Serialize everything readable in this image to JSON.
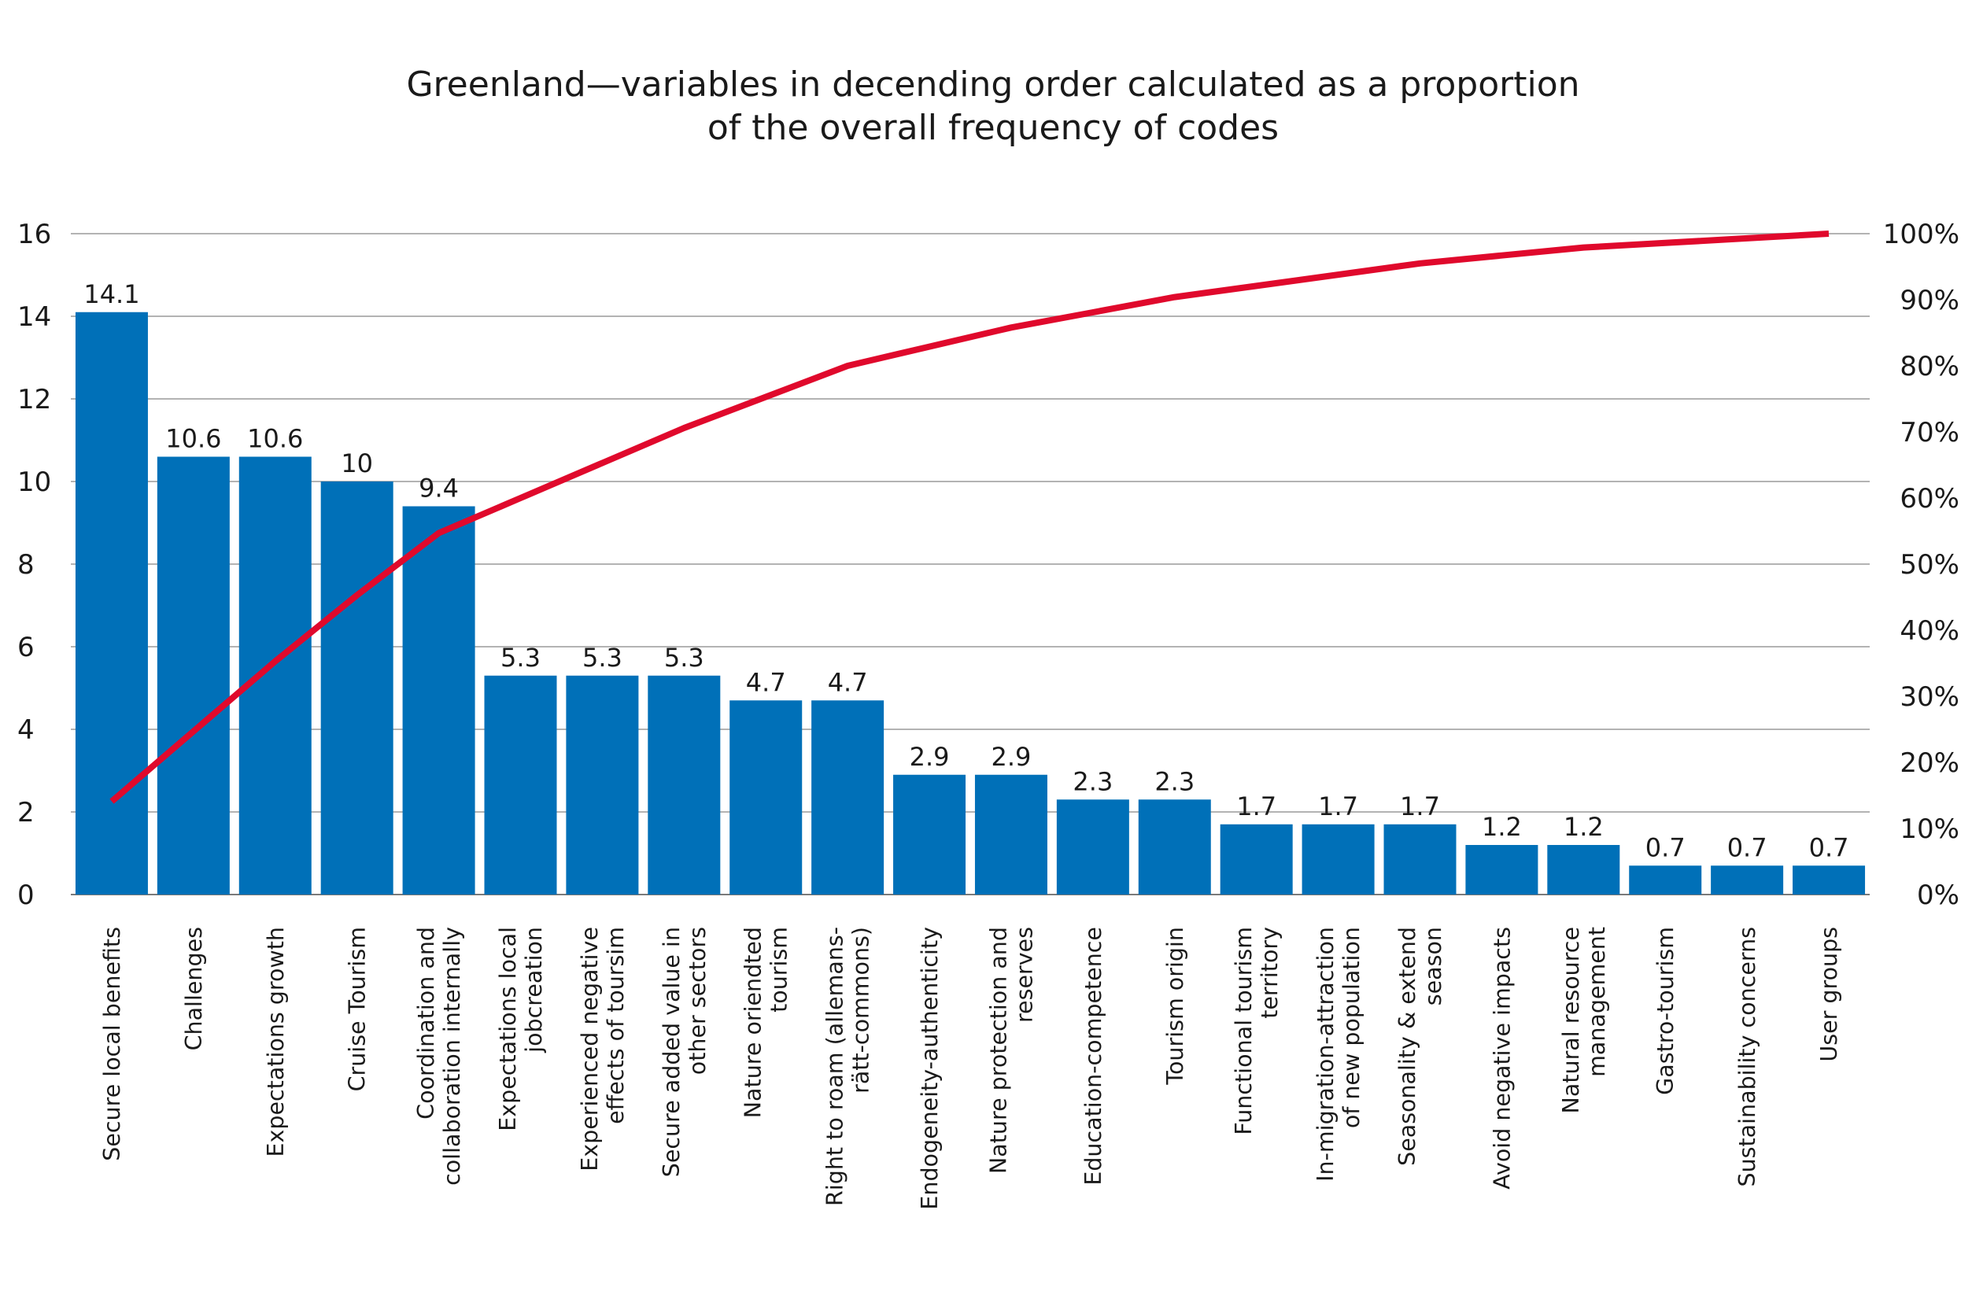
{
  "chart_data": {
    "type": "bar",
    "title": [
      "Greenland—variables in decending order calculated as a proportion",
      "of the overall frequency of codes"
    ],
    "categories": [
      [
        "Secure local benefits"
      ],
      [
        "Challenges"
      ],
      [
        "Expectations growth"
      ],
      [
        "Cruise Tourism"
      ],
      [
        "Coordination and",
        "collaboration internally"
      ],
      [
        "Expectations local",
        "jobcreation"
      ],
      [
        "Experienced negative",
        "effects of toursim"
      ],
      [
        "Secure added value in",
        "other sectors"
      ],
      [
        "Nature oriendted",
        "tourism"
      ],
      [
        "Right to roam (allemans-",
        "rätt-commons)"
      ],
      [
        "Endogeneity-authenticity"
      ],
      [
        "Nature protection and",
        "reserves"
      ],
      [
        "Education-competence"
      ],
      [
        "Tourism origin"
      ],
      [
        "Functional tourism",
        "territory"
      ],
      [
        "In-migration-attraction",
        "of new population"
      ],
      [
        "Seasonality & extend",
        "season"
      ],
      [
        "Avoid negative impacts"
      ],
      [
        "Natural resource",
        "management"
      ],
      [
        "Gastro-tourism"
      ],
      [
        "Sustainability concerns"
      ],
      [
        "User groups"
      ]
    ],
    "series": [
      {
        "type": "bar",
        "axis": "left",
        "color": "#0070b8",
        "values": [
          14.1,
          10.6,
          10.6,
          10,
          9.4,
          5.3,
          5.3,
          5.3,
          4.7,
          4.7,
          2.9,
          2.9,
          2.3,
          2.3,
          1.7,
          1.7,
          1.7,
          1.2,
          1.2,
          0.7,
          0.7,
          0.7
        ],
        "labels": [
          "14.1",
          "10.6",
          "10.6",
          "10",
          "9.4",
          "5.3",
          "5.3",
          "5.3",
          "4.7",
          "4.7",
          "2.9",
          "2.9",
          "2.3",
          "2.3",
          "1.7",
          "1.7",
          "1.7",
          "1.2",
          "1.2",
          "0.7",
          "0.7",
          "0.7"
        ]
      },
      {
        "type": "line",
        "axis": "right",
        "color": "#e0092c",
        "values": [
          14.1,
          24.7,
          35.3,
          45.3,
          54.7,
          60.0,
          65.3,
          70.6,
          75.3,
          80.0,
          82.9,
          85.8,
          88.1,
          90.4,
          92.1,
          93.8,
          95.5,
          96.7,
          97.9,
          98.6,
          99.3,
          100.0
        ]
      }
    ],
    "y_left": {
      "min": 0,
      "max": 16,
      "ticks": [
        "0",
        "2",
        "4",
        "6",
        "8",
        "10",
        "12",
        "14",
        "16"
      ]
    },
    "y_right": {
      "min": 0,
      "max": 100,
      "ticks": [
        "0%",
        "10%",
        "20%",
        "30%",
        "40%",
        "50%",
        "60%",
        "70%",
        "80%",
        "90%",
        "100%"
      ]
    },
    "grid": true,
    "legend": "none"
  }
}
